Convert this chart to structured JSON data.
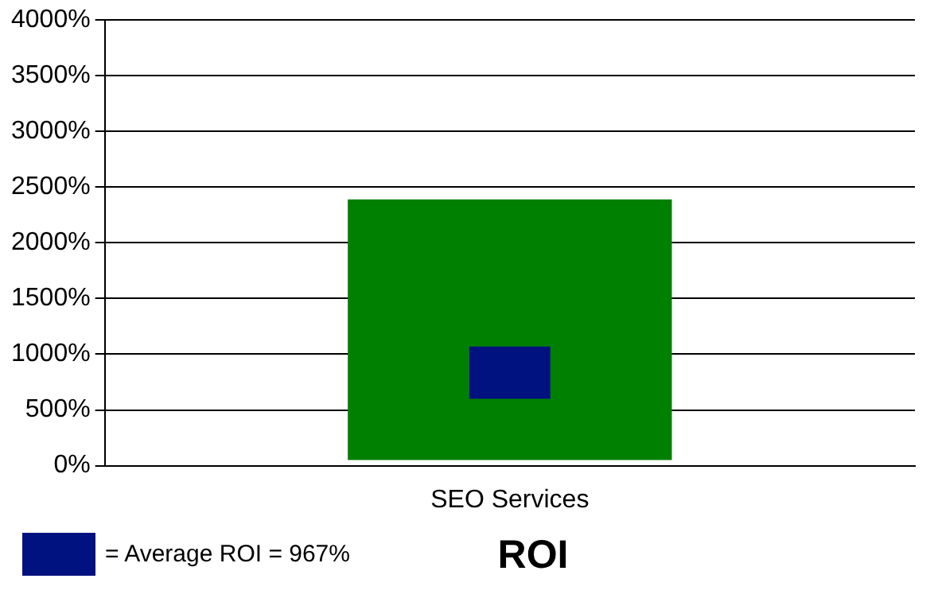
{
  "chart_data": {
    "type": "bar",
    "title": "ROI",
    "categories": [
      "SEO Services"
    ],
    "series": [
      {
        "color": "#008000",
        "values": [
          2340
        ],
        "base": [
          50
        ]
      },
      {
        "name": "= Average ROI = 967%",
        "color": "#001180",
        "values": [
          470
        ],
        "base": [
          600
        ]
      }
    ],
    "ylim": [
      0,
      4000
    ],
    "yticks": [
      {
        "value": 0,
        "label": "0%"
      },
      {
        "value": 500,
        "label": "500%"
      },
      {
        "value": 1000,
        "label": "1000%"
      },
      {
        "value": 1500,
        "label": "1500%"
      },
      {
        "value": 2000,
        "label": "2000%"
      },
      {
        "value": 2500,
        "label": "2500%"
      },
      {
        "value": 3000,
        "label": "3000%"
      },
      {
        "value": 3500,
        "label": "3500%"
      },
      {
        "value": 4000,
        "label": "4000%"
      }
    ],
    "grid": "y",
    "legend": "bottom left"
  }
}
